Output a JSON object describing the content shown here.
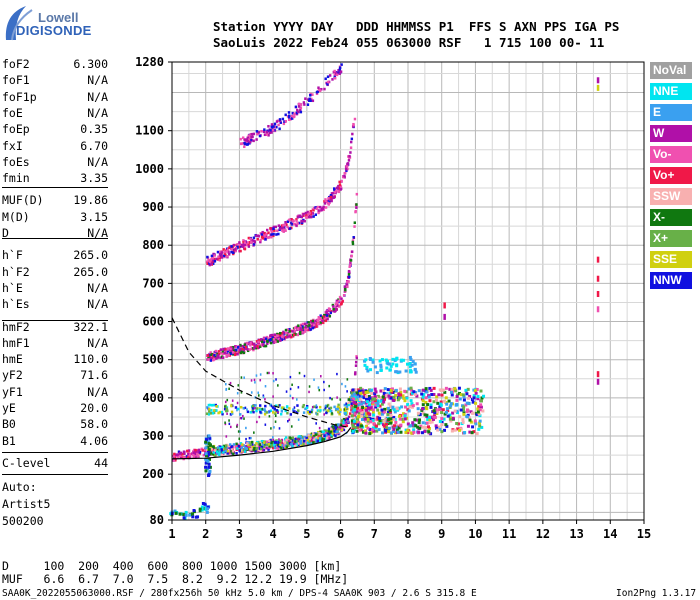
{
  "logo": {
    "line1": "Lowell",
    "line2": "DIGISONDE"
  },
  "header": {
    "line1": "Station YYYY DAY   DDD HHMMSS P1  FFS S AXN PPS IGA PS",
    "line2": "SaoLuis 2022 Feb24 055 063000 RSF   1 715 100 00- 11"
  },
  "params": [
    {
      "name": "foF2",
      "value": "6.300"
    },
    {
      "name": "foF1",
      "value": "N/A"
    },
    {
      "name": "foF1p",
      "value": "N/A"
    },
    {
      "name": "foE",
      "value": "N/A"
    },
    {
      "name": "foEp",
      "value": "0.35"
    },
    {
      "name": "fxI",
      "value": "6.70"
    },
    {
      "name": "foEs",
      "value": "N/A"
    },
    {
      "name": "fmin",
      "value": "3.35"
    },
    {
      "name": "MUF(D)",
      "value": "19.86"
    },
    {
      "name": "M(D)",
      "value": "3.15"
    },
    {
      "name": "D",
      "value": "N/A"
    },
    {
      "name": "h`F",
      "value": "265.0"
    },
    {
      "name": "h`F2",
      "value": "265.0"
    },
    {
      "name": "h`E",
      "value": "N/A"
    },
    {
      "name": "h`Es",
      "value": "N/A"
    },
    {
      "name": "hmF2",
      "value": "322.1"
    },
    {
      "name": "hmF1",
      "value": "N/A"
    },
    {
      "name": "hmE",
      "value": "110.0"
    },
    {
      "name": "yF2",
      "value": "71.6"
    },
    {
      "name": "yF1",
      "value": "N/A"
    },
    {
      "name": "yE",
      "value": "20.0"
    },
    {
      "name": "B0",
      "value": "58.0"
    },
    {
      "name": "B1",
      "value": "4.06"
    },
    {
      "name": "C-level",
      "value": "44"
    }
  ],
  "autoscaling": {
    "line1": "Auto:",
    "line2": "Artist5",
    "line3": "500200"
  },
  "legend": [
    {
      "label": "NoVal",
      "color": "#a0a0a0"
    },
    {
      "label": "NNE",
      "color": "#00e5f0"
    },
    {
      "label": "E",
      "color": "#3aa0f0"
    },
    {
      "label": "W",
      "color": "#b010a8"
    },
    {
      "label": "Vo-",
      "color": "#f050b0"
    },
    {
      "label": "Vo+",
      "color": "#f01848"
    },
    {
      "label": "SSW",
      "color": "#f8b0b0"
    },
    {
      "label": "X-",
      "color": "#107810"
    },
    {
      "label": "X+",
      "color": "#68b048"
    },
    {
      "label": "SSE",
      "color": "#d0d010"
    },
    {
      "label": "NNW",
      "color": "#1010e0"
    }
  ],
  "muf_table": {
    "d_line": "D     100  200  400  600  800 1000 1500 3000 [km]",
    "muf_line": "MUF   6.6  6.7  7.0  7.5  8.2  9.2 12.2 19.9 [MHz]"
  },
  "footer": {
    "left": "SAA0K_2022055063000.RSF / 280fx256h 50 kHz 5.0 km / DPS-4 SAA0K 903 / 2.6 S 315.8 E",
    "right": "Ion2Png 1.3.17"
  },
  "chart_data": {
    "type": "scatter",
    "title": "",
    "xlabel": "",
    "ylabel": "",
    "xlim": [
      1,
      15
    ],
    "ylim": [
      80,
      1280
    ],
    "x_ticks": [
      1,
      2,
      3,
      4,
      5,
      6,
      7,
      8,
      9,
      10,
      11,
      12,
      13,
      14,
      15
    ],
    "y_ticks": [
      80,
      200,
      300,
      400,
      500,
      600,
      700,
      800,
      900,
      1000,
      1100,
      1280
    ],
    "grid": true,
    "traces": {
      "o_trace_1hop": [
        [
          1.0,
          250
        ],
        [
          2.0,
          262
        ],
        [
          3.0,
          270
        ],
        [
          4.0,
          280
        ],
        [
          5.0,
          292
        ],
        [
          5.5,
          302
        ],
        [
          5.9,
          318
        ],
        [
          6.2,
          345
        ],
        [
          6.35,
          400
        ],
        [
          6.45,
          520
        ]
      ],
      "x_trace_1hop": [
        [
          2.0,
          262
        ],
        [
          3.0,
          272
        ],
        [
          4.0,
          282
        ],
        [
          5.0,
          294
        ],
        [
          5.5,
          305
        ],
        [
          6.0,
          330
        ],
        [
          6.3,
          420
        ]
      ],
      "o_trace_2hop": [
        [
          2.0,
          510
        ],
        [
          3.0,
          530
        ],
        [
          4.0,
          558
        ],
        [
          5.0,
          590
        ],
        [
          5.5,
          614
        ],
        [
          6.0,
          660
        ],
        [
          6.2,
          715
        ],
        [
          6.35,
          820
        ],
        [
          6.45,
          930
        ]
      ],
      "o_trace_3hop": [
        [
          2.0,
          760
        ],
        [
          3.0,
          800
        ],
        [
          4.0,
          840
        ],
        [
          5.0,
          880
        ],
        [
          5.5,
          910
        ],
        [
          6.0,
          965
        ],
        [
          6.25,
          1040
        ],
        [
          6.4,
          1150
        ]
      ],
      "o_trace_4hop": [
        [
          3.0,
          1070
        ],
        [
          4.0,
          1110
        ],
        [
          5.0,
          1180
        ],
        [
          6.0,
          1270
        ]
      ],
      "spread_f": {
        "x_range": [
          6.3,
          10.2
        ],
        "y_range": [
          310,
          430
        ]
      },
      "low_echoes": [
        [
          1.0,
          100
        ],
        [
          1.3,
          95
        ],
        [
          1.6,
          100
        ],
        [
          1.9,
          112
        ],
        [
          2.0,
          120
        ]
      ],
      "extra_column": [
        [
          13.6,
          640
        ],
        [
          13.6,
          680
        ],
        [
          13.6,
          720
        ],
        [
          13.6,
          770
        ],
        [
          13.6,
          1220
        ],
        [
          13.6,
          1240
        ],
        [
          13.6,
          450
        ],
        [
          13.6,
          470
        ],
        [
          9.05,
          620
        ],
        [
          9.05,
          650
        ]
      ]
    },
    "model_profiles": {
      "true_height_profile": [
        [
          1.0,
          240
        ],
        [
          2.0,
          242
        ],
        [
          3.0,
          250
        ],
        [
          4.0,
          260
        ],
        [
          5.0,
          275
        ],
        [
          5.5,
          285
        ],
        [
          6.0,
          298
        ],
        [
          6.2,
          310
        ],
        [
          6.3,
          322
        ]
      ],
      "dashed_profile": [
        [
          1.0,
          610
        ],
        [
          1.5,
          520
        ],
        [
          2.0,
          470
        ],
        [
          3.0,
          420
        ],
        [
          4.0,
          380
        ],
        [
          5.0,
          350
        ],
        [
          5.8,
          330
        ],
        [
          6.3,
          322
        ]
      ]
    }
  }
}
